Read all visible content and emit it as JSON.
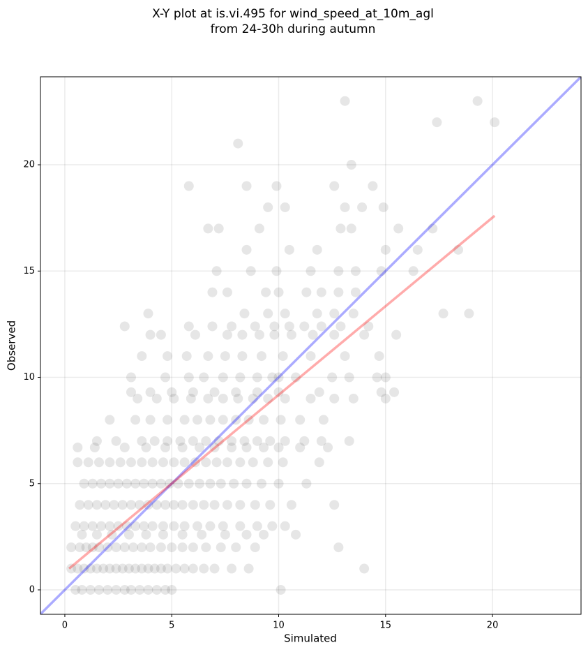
{
  "chart_data": {
    "type": "scatter",
    "title": "X-Y plot at is.vi.495 for wind_speed_at_10m_agl",
    "subtitle": "from 24-30h during autumn",
    "xlabel": "Simulated",
    "ylabel": "Observed",
    "xlim": [
      -1.14,
      24.14
    ],
    "ylim": [
      -1.15,
      24.14
    ],
    "xticks": [
      0,
      5,
      10,
      15,
      20
    ],
    "yticks": [
      0,
      5,
      10,
      15,
      20
    ],
    "grid": true,
    "color": "#333333",
    "x": [
      0.5,
      0.8,
      1.2,
      1.6,
      2.0,
      2.4,
      2.8,
      3.1,
      3.5,
      3.9,
      4.3,
      4.7,
      5.0,
      10.1,
      0.3,
      0.6,
      0.9,
      1.2,
      1.5,
      1.8,
      2.1,
      2.4,
      2.7,
      3.0,
      3.3,
      3.6,
      3.9,
      4.2,
      4.5,
      4.8,
      5.2,
      5.6,
      6.0,
      6.5,
      7.0,
      7.8,
      8.6,
      14.0,
      0.3,
      0.7,
      1.0,
      1.3,
      1.6,
      2.0,
      2.4,
      2.8,
      3.2,
      3.6,
      4.0,
      4.5,
      5.0,
      5.5,
      6.0,
      6.6,
      7.3,
      8.0,
      8.9,
      12.8,
      0.8,
      1.5,
      2.2,
      3.0,
      3.8,
      4.6,
      5.5,
      6.4,
      7.5,
      8.5,
      9.3,
      10.8,
      0.5,
      0.9,
      1.3,
      1.7,
      2.1,
      2.5,
      2.9,
      3.3,
      3.7,
      4.1,
      4.6,
      5.1,
      5.6,
      6.2,
      6.8,
      7.4,
      8.2,
      9.0,
      9.7,
      10.3,
      0.7,
      1.1,
      1.5,
      1.9,
      2.3,
      2.7,
      3.1,
      3.5,
      3.9,
      4.3,
      4.7,
      5.1,
      5.5,
      6.0,
      6.5,
      7.0,
      7.6,
      8.2,
      8.9,
      9.6,
      10.6,
      12.6,
      0.9,
      1.3,
      1.7,
      2.1,
      2.5,
      2.9,
      3.3,
      3.7,
      4.1,
      4.5,
      4.9,
      5.3,
      5.8,
      6.3,
      6.8,
      7.3,
      7.9,
      8.5,
      9.2,
      10.0,
      11.3,
      0.6,
      1.1,
      1.6,
      2.1,
      2.6,
      3.1,
      3.6,
      4.1,
      4.6,
      5.1,
      5.6,
      6.1,
      6.6,
      7.1,
      7.6,
      8.2,
      8.8,
      9.5,
      10.2,
      11.9,
      0.6,
      1.4,
      2.8,
      3.8,
      4.7,
      5.5,
      6.3,
      7.0,
      7.8,
      8.5,
      9.3,
      10.0,
      11.0,
      12.3,
      1.5,
      2.4,
      3.6,
      4.2,
      4.8,
      5.4,
      6.0,
      6.6,
      7.2,
      7.8,
      8.4,
      9.0,
      9.6,
      10.3,
      11.2,
      12.0,
      13.3,
      2.1,
      3.3,
      4.0,
      4.8,
      5.6,
      6.2,
      6.8,
      7.4,
      8.0,
      8.6,
      9.3,
      10.1,
      11.0,
      12.1,
      3.4,
      4.3,
      5.1,
      5.9,
      6.7,
      7.4,
      8.1,
      8.8,
      9.5,
      10.3,
      11.5,
      12.6,
      13.5,
      15.0,
      3.1,
      4.0,
      5.0,
      6.0,
      7.0,
      8.0,
      9.0,
      10.0,
      11.9,
      14.8,
      15.4,
      3.1,
      4.7,
      5.8,
      6.5,
      7.4,
      8.2,
      9.0,
      9.7,
      10.0,
      10.8,
      12.5,
      13.3,
      14.6,
      15.0,
      3.6,
      4.8,
      5.7,
      6.7,
      7.5,
      8.3,
      9.2,
      10.2,
      11.5,
      13.1,
      14.7,
      4.0,
      4.5,
      6.1,
      7.6,
      8.3,
      9.1,
      9.8,
      10.6,
      11.6,
      12.6,
      14.0,
      15.5,
      2.8,
      5.8,
      6.9,
      7.8,
      8.9,
      9.8,
      10.5,
      11.2,
      12.0,
      12.9,
      14.2,
      3.9,
      8.4,
      9.5,
      10.3,
      11.8,
      12.6,
      13.5,
      17.7,
      18.9,
      6.9,
      7.6,
      9.4,
      10.0,
      11.3,
      12.0,
      12.8,
      13.6,
      7.1,
      8.7,
      9.9,
      11.5,
      12.8,
      13.6,
      14.8,
      16.3,
      8.5,
      10.5,
      11.8,
      15.0,
      16.5,
      18.4,
      6.7,
      7.2,
      9.1,
      12.9,
      13.4,
      15.6,
      17.2,
      9.5,
      10.3,
      13.1,
      13.9,
      14.9,
      5.8,
      8.5,
      9.9,
      12.6,
      14.4,
      13.4,
      8.1,
      17.4,
      20.1,
      13.1,
      19.3
    ],
    "values": [
      0,
      0,
      0,
      0,
      0,
      0,
      0,
      0,
      0,
      0,
      0,
      0,
      0,
      0,
      1,
      1,
      1,
      1,
      1,
      1,
      1,
      1,
      1,
      1,
      1,
      1,
      1,
      1,
      1,
      1,
      1,
      1,
      1,
      1,
      1,
      1,
      1,
      1,
      2,
      2,
      2,
      2,
      2,
      2,
      2,
      2,
      2,
      2,
      2,
      2,
      2,
      2,
      2,
      2,
      2,
      2,
      2,
      2,
      2.6,
      2.6,
      2.6,
      2.6,
      2.6,
      2.6,
      2.6,
      2.6,
      2.6,
      2.6,
      2.6,
      2.6,
      3,
      3,
      3,
      3,
      3,
      3,
      3,
      3,
      3,
      3,
      3,
      3,
      3,
      3,
      3,
      3,
      3,
      3,
      3,
      3,
      4,
      4,
      4,
      4,
      4,
      4,
      4,
      4,
      4,
      4,
      4,
      4,
      4,
      4,
      4,
      4,
      4,
      4,
      4,
      4,
      4,
      4,
      5,
      5,
      5,
      5,
      5,
      5,
      5,
      5,
      5,
      5,
      5,
      5,
      5,
      5,
      5,
      5,
      5,
      5,
      5,
      5,
      5,
      6,
      6,
      6,
      6,
      6,
      6,
      6,
      6,
      6,
      6,
      6,
      6,
      6,
      6,
      6,
      6,
      6,
      6,
      6,
      6,
      6.7,
      6.7,
      6.7,
      6.7,
      6.7,
      6.7,
      6.7,
      6.7,
      6.7,
      6.7,
      6.7,
      6.7,
      6.7,
      6.7,
      7,
      7,
      7,
      7,
      7,
      7,
      7,
      7,
      7,
      7,
      7,
      7,
      7,
      7,
      7,
      7,
      7,
      8,
      8,
      8,
      8,
      8,
      8,
      8,
      8,
      8,
      8,
      8,
      8,
      8,
      8,
      9,
      9,
      9,
      9,
      9,
      9,
      9,
      9,
      9,
      9,
      9,
      9,
      9,
      9,
      9.3,
      9.3,
      9.3,
      9.3,
      9.3,
      9.3,
      9.3,
      9.3,
      9.3,
      9.3,
      9.3,
      10,
      10,
      10,
      10,
      10,
      10,
      10,
      10,
      10,
      10,
      10,
      10,
      10,
      10,
      11,
      11,
      11,
      11,
      11,
      11,
      11,
      11,
      11,
      11,
      11,
      12,
      12,
      12,
      12,
      12,
      12,
      12,
      12,
      12,
      12,
      12,
      12,
      12.4,
      12.4,
      12.4,
      12.4,
      12.4,
      12.4,
      12.4,
      12.4,
      12.4,
      12.4,
      12.4,
      13,
      13,
      13,
      13,
      13,
      13,
      13,
      13,
      13,
      14,
      14,
      14,
      14,
      14,
      14,
      14,
      14,
      15,
      15,
      15,
      15,
      15,
      15,
      15,
      15,
      16,
      16,
      16,
      16,
      16,
      16,
      17,
      17,
      17,
      17,
      17,
      17,
      17,
      18,
      18,
      18,
      18,
      18,
      19,
      19,
      19,
      19,
      19,
      20,
      21,
      22,
      22,
      23,
      23
    ],
    "lines": [
      {
        "color": "#0000ff",
        "x": [
          -1.14,
          24.14
        ],
        "values": [
          -1.14,
          24.14
        ]
      },
      {
        "color": "#ff0000",
        "x": [
          0.2,
          20.1
        ],
        "values": [
          1.0,
          17.6
        ]
      }
    ]
  }
}
